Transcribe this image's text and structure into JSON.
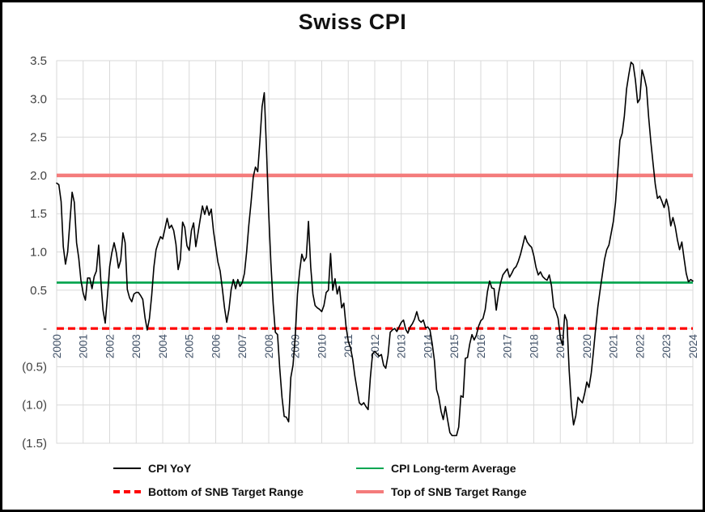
{
  "chart_data": {
    "type": "line",
    "title": "Swiss CPI",
    "x_unit": "month",
    "x_start": "2000-01",
    "x_end": "2024-01",
    "x_tick_labels": [
      "2000",
      "2001",
      "2002",
      "2003",
      "2004",
      "2005",
      "2006",
      "2007",
      "2008",
      "2009",
      "2010",
      "2011",
      "2012",
      "2013",
      "2014",
      "2015",
      "2016",
      "2017",
      "2018",
      "2019",
      "2020",
      "2021",
      "2022",
      "2023",
      "2024"
    ],
    "y_ticks": [
      {
        "value": 3.5,
        "label": "3.5"
      },
      {
        "value": 3.0,
        "label": "3.0"
      },
      {
        "value": 2.5,
        "label": "2.5"
      },
      {
        "value": 2.0,
        "label": "2.0"
      },
      {
        "value": 1.5,
        "label": "1.5"
      },
      {
        "value": 1.0,
        "label": "1.0"
      },
      {
        "value": 0.5,
        "label": "0.5"
      },
      {
        "value": 0.0,
        "label": "-"
      },
      {
        "value": -0.5,
        "label": "(0.5)"
      },
      {
        "value": -1.0,
        "label": "(1.0)"
      },
      {
        "value": -1.5,
        "label": "(1.5)"
      }
    ],
    "ylim": [
      -1.5,
      3.5
    ],
    "grid": true,
    "gridline_color": "#D9D9D9",
    "legend_position": "bottom",
    "series": [
      {
        "name": "CPI YoY",
        "type": "line",
        "color": "#000000",
        "width": 1.6,
        "values": [
          1.9,
          1.88,
          1.66,
          1.07,
          0.84,
          1.0,
          1.4,
          1.78,
          1.65,
          1.12,
          0.92,
          0.63,
          0.46,
          0.37,
          0.66,
          0.66,
          0.52,
          0.68,
          0.75,
          1.09,
          0.62,
          0.24,
          0.07,
          0.43,
          0.81,
          0.99,
          1.12,
          0.99,
          0.79,
          0.89,
          1.25,
          1.12,
          0.51,
          0.4,
          0.35,
          0.45,
          0.47,
          0.47,
          0.43,
          0.38,
          0.14,
          -0.02,
          0.13,
          0.43,
          0.8,
          1.03,
          1.12,
          1.2,
          1.17,
          1.3,
          1.44,
          1.31,
          1.35,
          1.28,
          1.1,
          0.77,
          0.9,
          1.39,
          1.32,
          1.08,
          1.02,
          1.28,
          1.38,
          1.07,
          1.25,
          1.43,
          1.6,
          1.49,
          1.6,
          1.48,
          1.56,
          1.27,
          1.07,
          0.87,
          0.75,
          0.52,
          0.27,
          0.08,
          0.25,
          0.51,
          0.64,
          0.52,
          0.64,
          0.55,
          0.6,
          0.72,
          1.0,
          1.35,
          1.65,
          1.98,
          2.11,
          2.05,
          2.45,
          2.9,
          3.08,
          2.32,
          1.5,
          0.85,
          0.32,
          -0.05,
          -0.08,
          -0.52,
          -0.9,
          -1.15,
          -1.16,
          -1.22,
          -0.64,
          -0.48,
          -0.1,
          0.45,
          0.75,
          0.97,
          0.88,
          0.93,
          1.4,
          0.8,
          0.45,
          0.3,
          0.27,
          0.25,
          0.22,
          0.3,
          0.47,
          0.5,
          0.98,
          0.5,
          0.65,
          0.45,
          0.55,
          0.27,
          0.33,
          0.03,
          -0.17,
          -0.25,
          -0.4,
          -0.62,
          -0.8,
          -0.97,
          -1.0,
          -0.97,
          -1.02,
          -1.06,
          -0.65,
          -0.33,
          -0.3,
          -0.33,
          -0.36,
          -0.34,
          -0.48,
          -0.52,
          -0.35,
          -0.05,
          -0.02,
          0.0,
          -0.04,
          0.02,
          0.08,
          0.11,
          -0.01,
          -0.06,
          0.02,
          0.06,
          0.12,
          0.22,
          0.11,
          0.08,
          0.11,
          0.01,
          0.02,
          -0.02,
          -0.2,
          -0.42,
          -0.8,
          -0.9,
          -1.08,
          -1.19,
          -1.02,
          -1.2,
          -1.36,
          -1.4,
          -1.4,
          -1.4,
          -1.29,
          -0.88,
          -0.9,
          -0.39,
          -0.38,
          -0.2,
          -0.08,
          -0.15,
          -0.09,
          0.03,
          0.1,
          0.13,
          0.25,
          0.48,
          0.62,
          0.53,
          0.52,
          0.24,
          0.45,
          0.6,
          0.7,
          0.74,
          0.78,
          0.67,
          0.72,
          0.78,
          0.81,
          0.88,
          0.97,
          1.09,
          1.21,
          1.13,
          1.09,
          1.06,
          0.95,
          0.8,
          0.7,
          0.74,
          0.68,
          0.65,
          0.63,
          0.7,
          0.56,
          0.28,
          0.22,
          0.13,
          -0.12,
          -0.22,
          0.18,
          0.1,
          -0.55,
          -1.0,
          -1.26,
          -1.14,
          -0.9,
          -0.94,
          -0.97,
          -0.85,
          -0.7,
          -0.77,
          -0.58,
          -0.3,
          0.0,
          0.28,
          0.5,
          0.7,
          0.9,
          1.03,
          1.09,
          1.24,
          1.4,
          1.65,
          2.05,
          2.46,
          2.55,
          2.78,
          3.13,
          3.32,
          3.48,
          3.45,
          3.25,
          2.95,
          3.0,
          3.38,
          3.28,
          3.15,
          2.76,
          2.44,
          2.15,
          1.88,
          1.7,
          1.73,
          1.66,
          1.58,
          1.69,
          1.58,
          1.34,
          1.45,
          1.33,
          1.16,
          1.03,
          1.13,
          0.92,
          0.72,
          0.61,
          0.64,
          0.62
        ]
      },
      {
        "name": "CPI Long-term Average",
        "type": "hline",
        "color": "#00A651",
        "width": 2.8,
        "value": 0.6
      },
      {
        "name": "Bottom of SNB Target Range",
        "type": "hline",
        "color": "#FF0000",
        "width": 3.2,
        "dash": "9 5",
        "value": 0.0
      },
      {
        "name": "Top of SNB Target Range",
        "type": "hline",
        "color": "#F47C7C",
        "width": 4.5,
        "value": 2.0
      }
    ]
  }
}
